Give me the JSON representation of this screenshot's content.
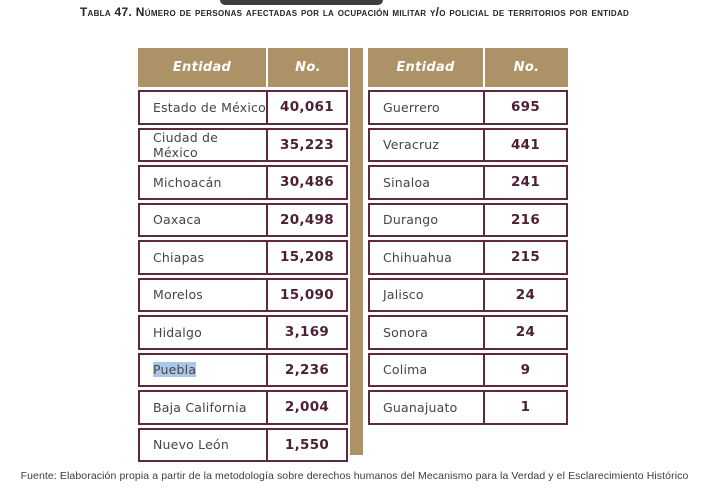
{
  "title": "Tabla 47. Número de personas afectadas por la ocupación militar y/o policial de territorios por entidad",
  "header": {
    "entity": "Entidad",
    "number": "No."
  },
  "left_rows": [
    {
      "entity": "Estado de México",
      "value": "40,061"
    },
    {
      "entity": "Ciudad de México",
      "value": "35,223"
    },
    {
      "entity": "Michoacán",
      "value": "30,486"
    },
    {
      "entity": "Oaxaca",
      "value": "20,498"
    },
    {
      "entity": "Chiapas",
      "value": "15,208"
    },
    {
      "entity": "Morelos",
      "value": "15,090"
    },
    {
      "entity": "Hidalgo",
      "value": "3,169"
    },
    {
      "entity": "Puebla",
      "value": "2,236",
      "selected": true
    },
    {
      "entity": "Baja California",
      "value": "2,004"
    },
    {
      "entity": "Nuevo León",
      "value": "1,550"
    }
  ],
  "right_rows": [
    {
      "entity": "Guerrero",
      "value": "695"
    },
    {
      "entity": "Veracruz",
      "value": "441"
    },
    {
      "entity": "Sinaloa",
      "value": "241"
    },
    {
      "entity": "Durango",
      "value": "216"
    },
    {
      "entity": "Chihuahua",
      "value": "215"
    },
    {
      "entity": "Jalisco",
      "value": "24"
    },
    {
      "entity": "Sonora",
      "value": "24"
    },
    {
      "entity": "Colima",
      "value": "9"
    },
    {
      "entity": "Guanajuato",
      "value": "1"
    }
  ],
  "source": "Fuente: Elaboración propia a partir de la metodología sobre derechos humanos del Mecanismo para la Verdad y el Esclarecimiento Histórico",
  "colors": {
    "header_bg": "#ae9267",
    "table_border": "#5c2a3c",
    "number_text": "#4c2135",
    "entity_text": "#474349",
    "selection_highlight": "#a9c8e9",
    "popup_remnant": "#3e3e3e"
  }
}
